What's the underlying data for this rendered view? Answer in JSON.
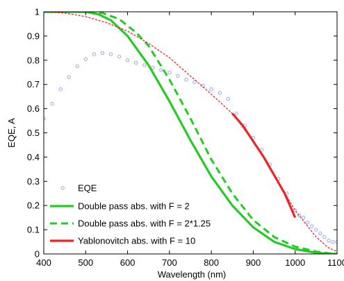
{
  "chart_data": {
    "type": "line",
    "xlabel": "Wavelength (nm)",
    "ylabel": "EQE, A",
    "xlim": [
      400,
      1100
    ],
    "ylim": [
      0,
      1
    ],
    "xticks": [
      "400",
      "500",
      "600",
      "700",
      "800",
      "900",
      "1000",
      "1100"
    ],
    "yticks": [
      "0",
      "0.1",
      "0.2",
      "0.3",
      "0.4",
      "0.5",
      "0.6",
      "0.7",
      "0.8",
      "0.9",
      "1"
    ],
    "grid": false,
    "legend_position": "bottom-left",
    "series": [
      {
        "name": "EQE",
        "style": "markers",
        "color": "#9aa4ee",
        "x": [
          400,
          420,
          440,
          460,
          480,
          500,
          520,
          540,
          560,
          580,
          600,
          620,
          640,
          660,
          680,
          700,
          720,
          740,
          760,
          780,
          800,
          820,
          840,
          860,
          880,
          900,
          920,
          940,
          960,
          980,
          1000,
          1010,
          1020,
          1030,
          1040,
          1050,
          1060,
          1070,
          1080,
          1090,
          1100
        ],
        "y": [
          0.56,
          0.62,
          0.68,
          0.73,
          0.775,
          0.805,
          0.825,
          0.83,
          0.825,
          0.815,
          0.8,
          0.79,
          0.78,
          0.77,
          0.76,
          0.75,
          0.735,
          0.72,
          0.71,
          0.695,
          0.68,
          0.665,
          0.64,
          0.58,
          0.53,
          0.48,
          0.43,
          0.37,
          0.31,
          0.25,
          0.18,
          0.16,
          0.15,
          0.13,
          0.115,
          0.1,
          0.085,
          0.07,
          0.055,
          0.05,
          0.05
        ]
      },
      {
        "name": "Double pass abs. with F = 2",
        "style": "solid",
        "color": "#22cc22",
        "x": [
          400,
          450,
          500,
          530,
          560,
          600,
          650,
          700,
          750,
          800,
          850,
          900,
          950,
          1000,
          1050,
          1080,
          1100
        ],
        "y": [
          1.0,
          1.0,
          1.0,
          0.99,
          0.965,
          0.9,
          0.78,
          0.63,
          0.47,
          0.32,
          0.2,
          0.11,
          0.05,
          0.02,
          0.005,
          0.001,
          0.0
        ]
      },
      {
        "name": "Double pass abs. with F = 2*1.25",
        "style": "dashed",
        "color": "#22cc22",
        "x": [
          400,
          450,
          500,
          540,
          580,
          620,
          650,
          700,
          750,
          800,
          850,
          900,
          950,
          1000,
          1050,
          1080,
          1100
        ],
        "y": [
          1.0,
          1.0,
          1.0,
          0.995,
          0.97,
          0.915,
          0.86,
          0.72,
          0.56,
          0.39,
          0.25,
          0.14,
          0.07,
          0.03,
          0.01,
          0.003,
          0.0
        ]
      },
      {
        "name": "",
        "style": "dotted",
        "color": "#ee2222",
        "x": [
          400,
          450,
          500,
          550,
          600,
          650,
          700,
          750,
          800,
          850,
          900,
          950,
          1000,
          1050,
          1080,
          1100
        ],
        "y": [
          1.0,
          0.995,
          0.98,
          0.955,
          0.92,
          0.87,
          0.81,
          0.735,
          0.66,
          0.58,
          0.465,
          0.325,
          0.18,
          0.07,
          0.025,
          0.01
        ]
      },
      {
        "name": "Yablonovitch abs. with F = 10",
        "style": "solid",
        "color": "#ee2222",
        "x": [
          850,
          875,
          900,
          925,
          950,
          975,
          1000
        ],
        "y": [
          0.58,
          0.53,
          0.465,
          0.4,
          0.325,
          0.25,
          0.15
        ]
      }
    ]
  }
}
